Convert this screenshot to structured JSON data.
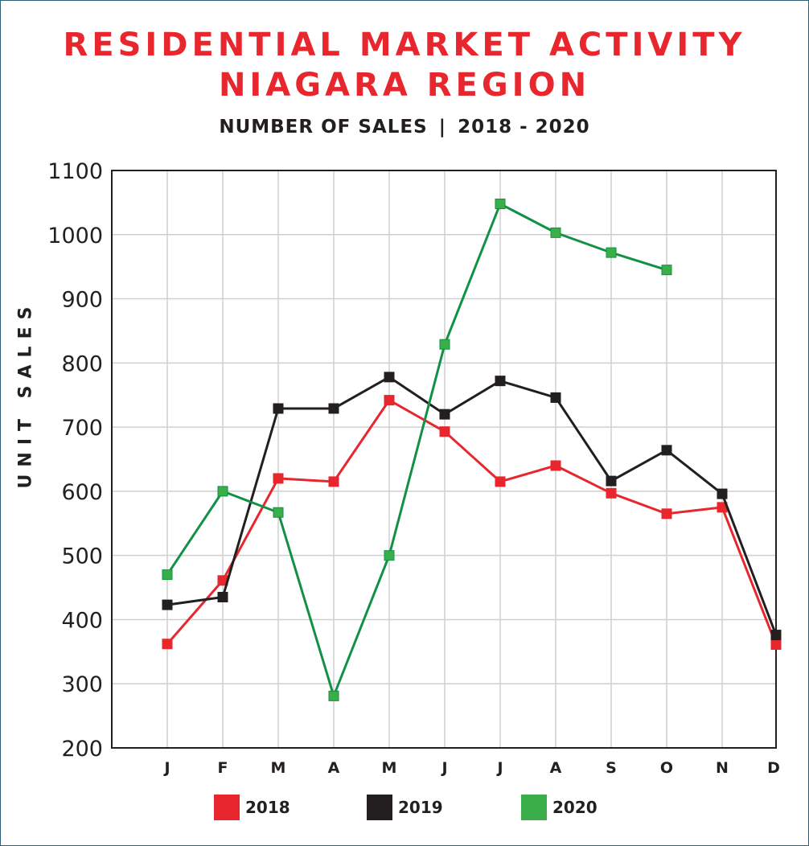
{
  "header": {
    "title_line1": "RESIDENTIAL MARKET ACTIVITY",
    "title_line2": "NIAGARA REGION",
    "subtitle_left": "NUMBER OF SALES",
    "subtitle_sep": "|",
    "subtitle_right": "2018 - 2020"
  },
  "chart_data": {
    "type": "line",
    "title": "RESIDENTIAL MARKET ACTIVITY NIAGARA REGION",
    "subtitle": "NUMBER OF SALES | 2018 - 2020",
    "xlabel": "",
    "ylabel": "UNIT SALES",
    "ylim": [
      200,
      1100
    ],
    "yticks": [
      200,
      300,
      400,
      500,
      600,
      700,
      800,
      900,
      1000,
      1100
    ],
    "categories": [
      "J",
      "F",
      "M",
      "A",
      "M",
      "J",
      "J",
      "A",
      "S",
      "O",
      "N",
      "D"
    ],
    "grid": true,
    "legend_position": "bottom",
    "series": [
      {
        "name": "2018",
        "color": "#e8262d",
        "values": [
          362,
          461,
          620,
          615,
          742,
          693,
          615,
          640,
          597,
          565,
          575,
          361
        ]
      },
      {
        "name": "2019",
        "color": "#231f20",
        "values": [
          423,
          435,
          729,
          729,
          778,
          720,
          772,
          746,
          616,
          664,
          596,
          376
        ]
      },
      {
        "name": "2020",
        "color": "#129146",
        "marker_color": "#3aae49",
        "values": [
          470,
          600,
          567,
          281,
          500,
          829,
          1048,
          1003,
          972,
          945,
          null,
          null
        ]
      }
    ]
  }
}
